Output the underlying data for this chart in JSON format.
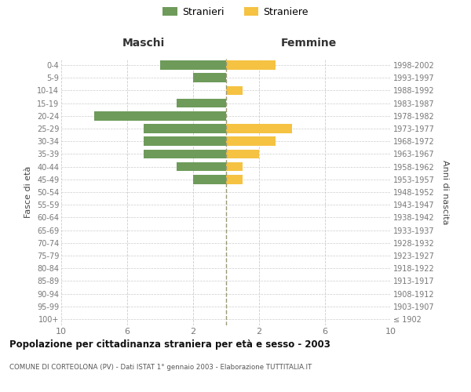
{
  "age_groups": [
    "100+",
    "95-99",
    "90-94",
    "85-89",
    "80-84",
    "75-79",
    "70-74",
    "65-69",
    "60-64",
    "55-59",
    "50-54",
    "45-49",
    "40-44",
    "35-39",
    "30-34",
    "25-29",
    "20-24",
    "15-19",
    "10-14",
    "5-9",
    "0-4"
  ],
  "birth_years": [
    "≤ 1902",
    "1903-1907",
    "1908-1912",
    "1913-1917",
    "1918-1922",
    "1923-1927",
    "1928-1932",
    "1933-1937",
    "1938-1942",
    "1943-1947",
    "1948-1952",
    "1953-1957",
    "1958-1962",
    "1963-1967",
    "1968-1972",
    "1973-1977",
    "1978-1982",
    "1983-1987",
    "1988-1992",
    "1993-1997",
    "1998-2002"
  ],
  "stranieri": [
    0,
    0,
    0,
    0,
    0,
    0,
    0,
    0,
    0,
    0,
    0,
    2,
    3,
    5,
    5,
    5,
    8,
    3,
    0,
    2,
    4
  ],
  "straniere": [
    0,
    0,
    0,
    0,
    0,
    0,
    0,
    0,
    0,
    0,
    0,
    1,
    1,
    2,
    3,
    4,
    0,
    0,
    1,
    0,
    3
  ],
  "color_stranieri": "#6e9b5a",
  "color_straniere": "#f5c242",
  "header_maschi": "Maschi",
  "header_femmine": "Femmine",
  "ylabel_left": "Fasce di età",
  "ylabel_right": "Anni di nascita",
  "title": "Popolazione per cittadinanza straniera per età e sesso - 2003",
  "subtitle": "COMUNE DI CORTEOLONA (PV) - Dati ISTAT 1° gennaio 2003 - Elaborazione TUTTITALIA.IT",
  "xlim": 10,
  "legend_stranieri": "Stranieri",
  "legend_straniere": "Straniere",
  "bg_color": "#ffffff",
  "grid_color": "#cccccc",
  "tick_color": "#777777"
}
